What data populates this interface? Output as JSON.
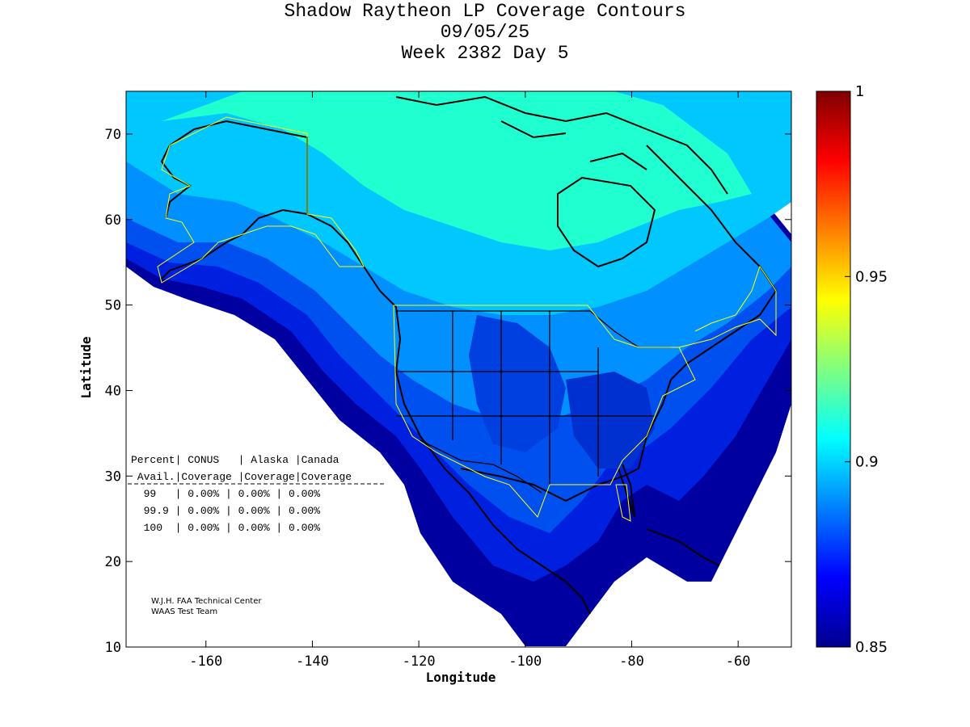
{
  "title": {
    "line1": "Shadow Raytheon LP Coverage Contours",
    "line2": "09/05/25",
    "line3": "Week 2382 Day 5"
  },
  "axes": {
    "xlabel": "Longitude",
    "ylabel": "Latitude",
    "xlim": [
      -175,
      -50
    ],
    "ylim": [
      10,
      75
    ],
    "xticks": [
      "-160",
      "-140",
      "-120",
      "-100",
      "-80",
      "-60"
    ],
    "yticks": [
      "10",
      "20",
      "30",
      "40",
      "50",
      "60",
      "70"
    ]
  },
  "colorbar": {
    "range": [
      0.85,
      1
    ],
    "ticks": [
      "1",
      "0.95",
      "0.9",
      "0.85"
    ],
    "colormap": "jet"
  },
  "table": {
    "header1": "Percent| CONUS   | Alaska |Canada",
    "header2": " Avail.|Coverage |Coverage|Coverage",
    "rows": [
      "  99   | 0.00% | 0.00% | 0.00%",
      "  99.9 | 0.00% | 0.00% | 0.00%",
      "  100  | 0.00% | 0.00% | 0.00%"
    ]
  },
  "credits": {
    "line1": "W.J.H. FAA Technical Center",
    "line2": "WAAS Test Team"
  },
  "colors": {
    "level_low": "#00008f",
    "level_mid": "#00a0ff",
    "level_high": "#20ffd0",
    "service_boundary": "#ffff00",
    "coastline": "#000000"
  }
}
